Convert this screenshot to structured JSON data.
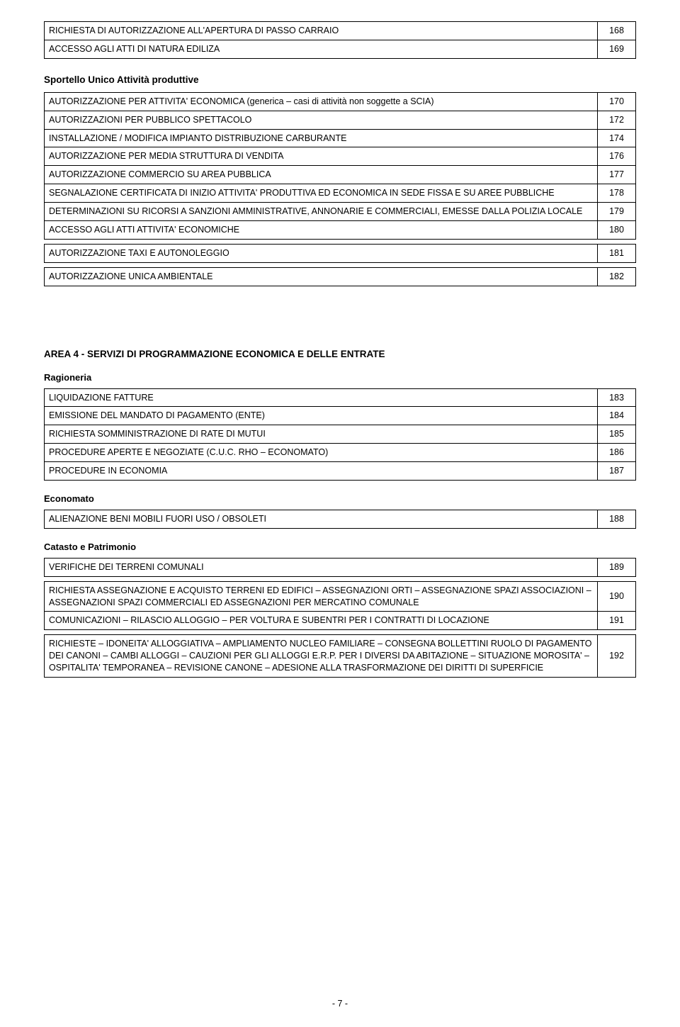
{
  "tables": {
    "t_top": {
      "rows": [
        {
          "label": "RICHIESTA DI AUTORIZZAZIONE ALL'APERTURA DI PASSO CARRAIO",
          "num": "168"
        },
        {
          "label": "ACCESSO AGLI ATTI DI NATURA EDILIZA",
          "num": "169"
        }
      ]
    },
    "t_sportello": {
      "rows": [
        {
          "label": "AUTORIZZAZIONE PER ATTIVITA' ECONOMICA (generica – casi di attività non soggette a SCIA)",
          "num": "170"
        },
        {
          "label": "AUTORIZZAZIONI PER PUBBLICO SPETTACOLO",
          "num": "172"
        },
        {
          "label": "INSTALLAZIONE / MODIFICA IMPIANTO DISTRIBUZIONE CARBURANTE",
          "num": "174"
        },
        {
          "label": "AUTORIZZAZIONE PER MEDIA STRUTTURA DI VENDITA",
          "num": "176"
        },
        {
          "label": "AUTORIZZAZIONE COMMERCIO SU AREA PUBBLICA",
          "num": "177"
        },
        {
          "label": "SEGNALAZIONE CERTIFICATA DI INIZIO ATTIVITA' PRODUTTIVA ED ECONOMICA IN SEDE FISSA E SU AREE PUBBLICHE",
          "num": "178"
        },
        {
          "label": "DETERMINAZIONI SU RICORSI A SANZIONI AMMINISTRATIVE, ANNONARIE E COMMERCIALI, EMESSE DALLA POLIZIA LOCALE",
          "num": "179"
        },
        {
          "label": "ACCESSO AGLI ATTI ATTIVITA' ECONOMICHE",
          "num": "180"
        }
      ]
    },
    "t_181": {
      "rows": [
        {
          "label": "AUTORIZZAZIONE TAXI E AUTONOLEGGIO",
          "num": "181"
        }
      ]
    },
    "t_182": {
      "rows": [
        {
          "label": "AUTORIZZAZIONE UNICA AMBIENTALE",
          "num": "182"
        }
      ]
    },
    "t_ragioneria": {
      "rows": [
        {
          "label": "LIQUIDAZIONE FATTURE",
          "num": "183"
        },
        {
          "label": "EMISSIONE DEL MANDATO DI PAGAMENTO (ENTE)",
          "num": "184"
        },
        {
          "label": "RICHIESTA SOMMINISTRAZIONE DI RATE DI MUTUI",
          "num": "185"
        },
        {
          "label": "PROCEDURE APERTE E NEGOZIATE (C.U.C. RHO – ECONOMATO)",
          "num": "186"
        },
        {
          "label": "PROCEDURE IN ECONOMIA",
          "num": "187"
        }
      ]
    },
    "t_economato": {
      "rows": [
        {
          "label": "ALIENAZIONE BENI MOBILI FUORI USO / OBSOLETI",
          "num": "188"
        }
      ]
    },
    "t_catasto1": {
      "rows": [
        {
          "label": "VERIFICHE DEI TERRENI COMUNALI",
          "num": "189"
        }
      ]
    },
    "t_catasto2": {
      "rows": [
        {
          "label": "RICHIESTA ASSEGNAZIONE E ACQUISTO TERRENI ED EDIFICI – ASSEGNAZIONI ORTI – ASSEGNAZIONE SPAZI ASSOCIAZIONI – ASSEGNAZIONI SPAZI COMMERCIALI ED ASSEGNAZIONI PER MERCATINO COMUNALE",
          "num": "190"
        },
        {
          "label": "COMUNICAZIONI – RILASCIO ALLOGGIO – PER VOLTURA E SUBENTRI PER I CONTRATTI DI LOCAZIONE",
          "num": "191"
        }
      ]
    },
    "t_catasto3": {
      "rows": [
        {
          "label": "RICHIESTE – IDONEITA' ALLOGGIATIVA – AMPLIAMENTO NUCLEO FAMILIARE – CONSEGNA BOLLETTINI RUOLO DI PAGAMENTO DEI CANONI – CAMBI ALLOGGI – CAUZIONI PER GLI ALLOGGI E.R.P. PER I DIVERSI DA ABITAZIONE – SITUAZIONE MOROSITA' – OSPITALITA' TEMPORANEA – REVISIONE CANONE – ADESIONE ALLA TRASFORMAZIONE DEI DIRITTI DI SUPERFICIE",
          "num": "192"
        }
      ]
    }
  },
  "headings": {
    "sportello": "Sportello Unico Attività produttive",
    "area4": "AREA 4 - SERVIZI DI PROGRAMMAZIONE ECONOMICA E DELLE ENTRATE",
    "ragioneria": "Ragioneria",
    "economato": "Economato",
    "catasto": "Catasto e Patrimonio"
  },
  "footer": "- 7 -"
}
